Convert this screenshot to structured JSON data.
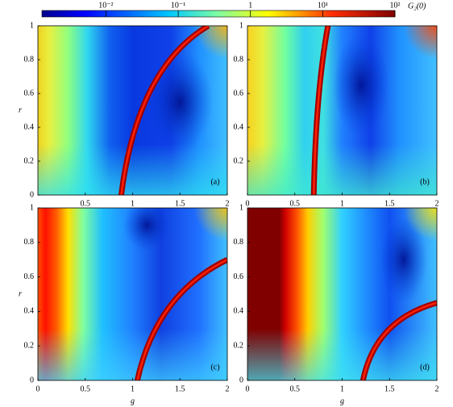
{
  "chart_data": [
    {
      "type": "colorbar",
      "label": "G₂(0)",
      "clim": [
        0.0013,
        100
      ],
      "log": true,
      "ticks": [
        {
          "value": 0.01,
          "label": "10⁻²"
        },
        {
          "value": 0.1,
          "label": "10⁻¹"
        },
        1,
        {
          "value": 10,
          "label": "10¹"
        },
        {
          "value": 100,
          "label": "10²"
        }
      ]
    },
    {
      "type": "heatmap",
      "panel_label": "(a)",
      "ylabel": "r",
      "xlim": [
        0,
        2
      ],
      "ylim": [
        0,
        1
      ],
      "xticks": [
        0.5,
        1,
        1.5,
        2
      ],
      "yticks": [
        0,
        0.2,
        0.4,
        0.6,
        0.8,
        1
      ]
    },
    {
      "type": "heatmap",
      "panel_label": "(b)",
      "xlim": [
        0,
        2
      ],
      "ylim": [
        0,
        1
      ],
      "xticks": [
        0,
        0.5,
        1,
        1.5,
        2
      ],
      "yticks": [
        0.2,
        0.4,
        0.6,
        0.8,
        1
      ]
    },
    {
      "type": "heatmap",
      "panel_label": "(c)",
      "xlabel": "g",
      "ylabel": "r",
      "xlim": [
        0,
        2
      ],
      "ylim": [
        0,
        1
      ],
      "xticks": [
        0,
        0.5,
        1,
        1.5,
        2
      ],
      "yticks": [
        0,
        0.2,
        0.4,
        0.6,
        0.8,
        1
      ]
    },
    {
      "type": "heatmap",
      "panel_label": "(d)",
      "xlabel": "g",
      "xlim": [
        0,
        2
      ],
      "ylim": [
        0,
        1
      ],
      "xticks": [
        0,
        0.5,
        1,
        1.5,
        2
      ],
      "yticks": [
        0,
        0.2,
        0.4,
        0.6,
        0.8,
        1
      ]
    }
  ]
}
